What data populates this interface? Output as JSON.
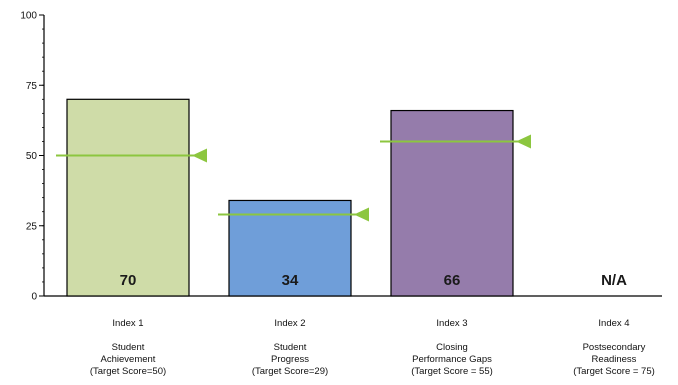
{
  "chart_data": {
    "type": "bar",
    "title": "",
    "xlabel": "",
    "ylabel": "",
    "ylim": [
      0,
      100
    ],
    "y_ticks": [
      "0",
      "25",
      "50",
      "75",
      "100"
    ],
    "y_tick_values": [
      0,
      25,
      50,
      75,
      100
    ],
    "categories": [
      {
        "index": "Index 1",
        "name": "Student",
        "name2": "Achievement",
        "target_text": "(Target Score=50)",
        "value": 70,
        "value_label": "70",
        "target": 50,
        "color": "#cfdca8"
      },
      {
        "index": "Index 2",
        "name": "Student",
        "name2": "Progress",
        "target_text": "(Target Score=29)",
        "value": 34,
        "value_label": "34",
        "target": 29,
        "color": "#6f9ed9"
      },
      {
        "index": "Index 3",
        "name": "Closing",
        "name2": "Performance Gaps",
        "target_text": "(Target Score = 55)",
        "value": 66,
        "value_label": "66",
        "target": 55,
        "color": "#957cab"
      },
      {
        "index": "Index 4",
        "name": "Postsecondary",
        "name2": "Readiness",
        "target_text": "(Target Score = 75)",
        "value": null,
        "value_label": "N/A",
        "target": null,
        "color": "#ffffff"
      }
    ],
    "target_line_color": "#8cc63f",
    "grid": false,
    "legend": "none"
  }
}
